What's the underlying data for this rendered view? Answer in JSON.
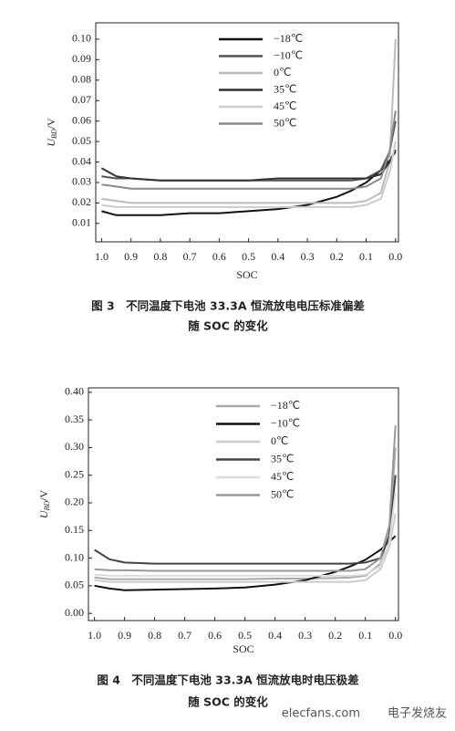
{
  "chart_data": [
    {
      "type": "line",
      "x": [
        1.0,
        0.95,
        0.9,
        0.8,
        0.7,
        0.6,
        0.5,
        0.4,
        0.3,
        0.2,
        0.15,
        0.1,
        0.05,
        0.02,
        0.0
      ],
      "xlabel": "SOC",
      "ylabel": {
        "symbol": "U",
        "subscript": "BD",
        "unit": "/V"
      },
      "xlim": [
        1.02,
        -0.01
      ],
      "xticks": [
        {
          "value": 1.0,
          "label": "1.0"
        },
        0.9,
        0.8,
        0.7,
        0.6,
        0.5,
        0.4,
        0.3,
        0.2,
        0.1,
        {
          "value": 0.0,
          "label": "0.0"
        }
      ],
      "ylim": [
        0.001,
        0.108
      ],
      "yticks": [
        0.01,
        {
          "value": 0.02,
          "label": "0.02"
        },
        0.03,
        0.04,
        0.05,
        0.06,
        0.07,
        0.08,
        0.09,
        {
          "value": 0.1,
          "label": "0.10"
        }
      ],
      "caption": [
        "图 3　不同温度下电池 33.3A 恒流放电电压标准偏差",
        "随 SOC 的变化"
      ],
      "series": [
        {
          "name": "−18℃",
          "color": "#111111",
          "values": [
            0.016,
            0.014,
            0.014,
            0.014,
            0.015,
            0.015,
            0.016,
            0.017,
            0.019,
            0.023,
            0.026,
            0.03,
            0.036,
            0.041,
            0.045
          ]
        },
        {
          "name": "−10℃",
          "color": "#555555",
          "values": [
            0.033,
            0.032,
            0.032,
            0.031,
            0.031,
            0.031,
            0.031,
            0.031,
            0.031,
            0.031,
            0.031,
            0.032,
            0.036,
            0.045,
            0.06
          ]
        },
        {
          "name": "0℃",
          "color": "#bbbbbb",
          "values": [
            0.022,
            0.021,
            0.02,
            0.02,
            0.02,
            0.02,
            0.02,
            0.02,
            0.02,
            0.02,
            0.02,
            0.021,
            0.025,
            0.04,
            0.1
          ]
        },
        {
          "name": "35℃",
          "color": "#333333",
          "values": [
            0.037,
            0.033,
            0.032,
            0.031,
            0.031,
            0.031,
            0.031,
            0.032,
            0.032,
            0.032,
            0.032,
            0.032,
            0.034,
            0.04,
            0.046
          ]
        },
        {
          "name": "45℃",
          "color": "#cccccc",
          "values": [
            0.019,
            0.018,
            0.018,
            0.018,
            0.018,
            0.018,
            0.018,
            0.018,
            0.018,
            0.018,
            0.018,
            0.019,
            0.022,
            0.035,
            0.05
          ]
        },
        {
          "name": "50℃",
          "color": "#888888",
          "values": [
            0.029,
            0.028,
            0.027,
            0.027,
            0.027,
            0.027,
            0.027,
            0.027,
            0.027,
            0.027,
            0.027,
            0.028,
            0.032,
            0.045,
            0.065
          ]
        }
      ]
    },
    {
      "type": "line",
      "x": [
        1.0,
        0.95,
        0.9,
        0.8,
        0.7,
        0.6,
        0.5,
        0.4,
        0.3,
        0.2,
        0.15,
        0.1,
        0.05,
        0.02,
        0.0
      ],
      "xlabel": "SOC",
      "ylabel": {
        "symbol": "U",
        "subscript": "BD",
        "unit": "/V"
      },
      "xlim": [
        1.02,
        -0.01
      ],
      "xticks": [
        {
          "value": 1.0,
          "label": "1.0"
        },
        0.9,
        0.8,
        0.7,
        0.6,
        0.5,
        0.4,
        0.3,
        0.2,
        0.1,
        {
          "value": 0.0,
          "label": "0.0"
        }
      ],
      "ylim": [
        -0.013,
        0.408
      ],
      "yticks": [
        {
          "value": 0.0,
          "label": "0.00"
        },
        0.05,
        {
          "value": 0.1,
          "label": "0.10"
        },
        0.15,
        {
          "value": 0.2,
          "label": "0.20"
        },
        0.25,
        {
          "value": 0.3,
          "label": "0.30"
        },
        0.35,
        {
          "value": 0.4,
          "label": "0.40"
        }
      ],
      "caption": [
        "图 4　不同温度下电池 33.3A 恒流放电时电压极差",
        "随 SOC 的变化"
      ],
      "series": [
        {
          "name": "−18℃",
          "color": "#aaaaaa",
          "values": [
            0.065,
            0.062,
            0.062,
            0.062,
            0.062,
            0.062,
            0.062,
            0.063,
            0.063,
            0.064,
            0.065,
            0.068,
            0.09,
            0.15,
            0.3
          ]
        },
        {
          "name": "−10℃",
          "color": "#111111",
          "values": [
            0.05,
            0.045,
            0.042,
            0.043,
            0.044,
            0.045,
            0.047,
            0.052,
            0.06,
            0.075,
            0.085,
            0.097,
            0.115,
            0.13,
            0.14
          ]
        },
        {
          "name": "0℃",
          "color": "#cccccc",
          "values": [
            0.06,
            0.057,
            0.057,
            0.057,
            0.057,
            0.057,
            0.057,
            0.057,
            0.057,
            0.057,
            0.057,
            0.06,
            0.08,
            0.12,
            0.18
          ]
        },
        {
          "name": "35℃",
          "color": "#444444",
          "values": [
            0.115,
            0.098,
            0.092,
            0.09,
            0.09,
            0.09,
            0.09,
            0.09,
            0.09,
            0.09,
            0.09,
            0.092,
            0.1,
            0.14,
            0.25
          ]
        },
        {
          "name": "45℃",
          "color": "#dddddd",
          "values": [
            0.07,
            0.068,
            0.068,
            0.068,
            0.068,
            0.068,
            0.068,
            0.068,
            0.068,
            0.068,
            0.068,
            0.07,
            0.085,
            0.13,
            0.22
          ]
        },
        {
          "name": "50℃",
          "color": "#999999",
          "values": [
            0.08,
            0.078,
            0.078,
            0.077,
            0.077,
            0.077,
            0.077,
            0.077,
            0.077,
            0.077,
            0.077,
            0.08,
            0.1,
            0.16,
            0.34
          ]
        }
      ]
    }
  ],
  "watermark": {
    "site": "elecfans.com",
    "brand": "电子发烧友"
  }
}
